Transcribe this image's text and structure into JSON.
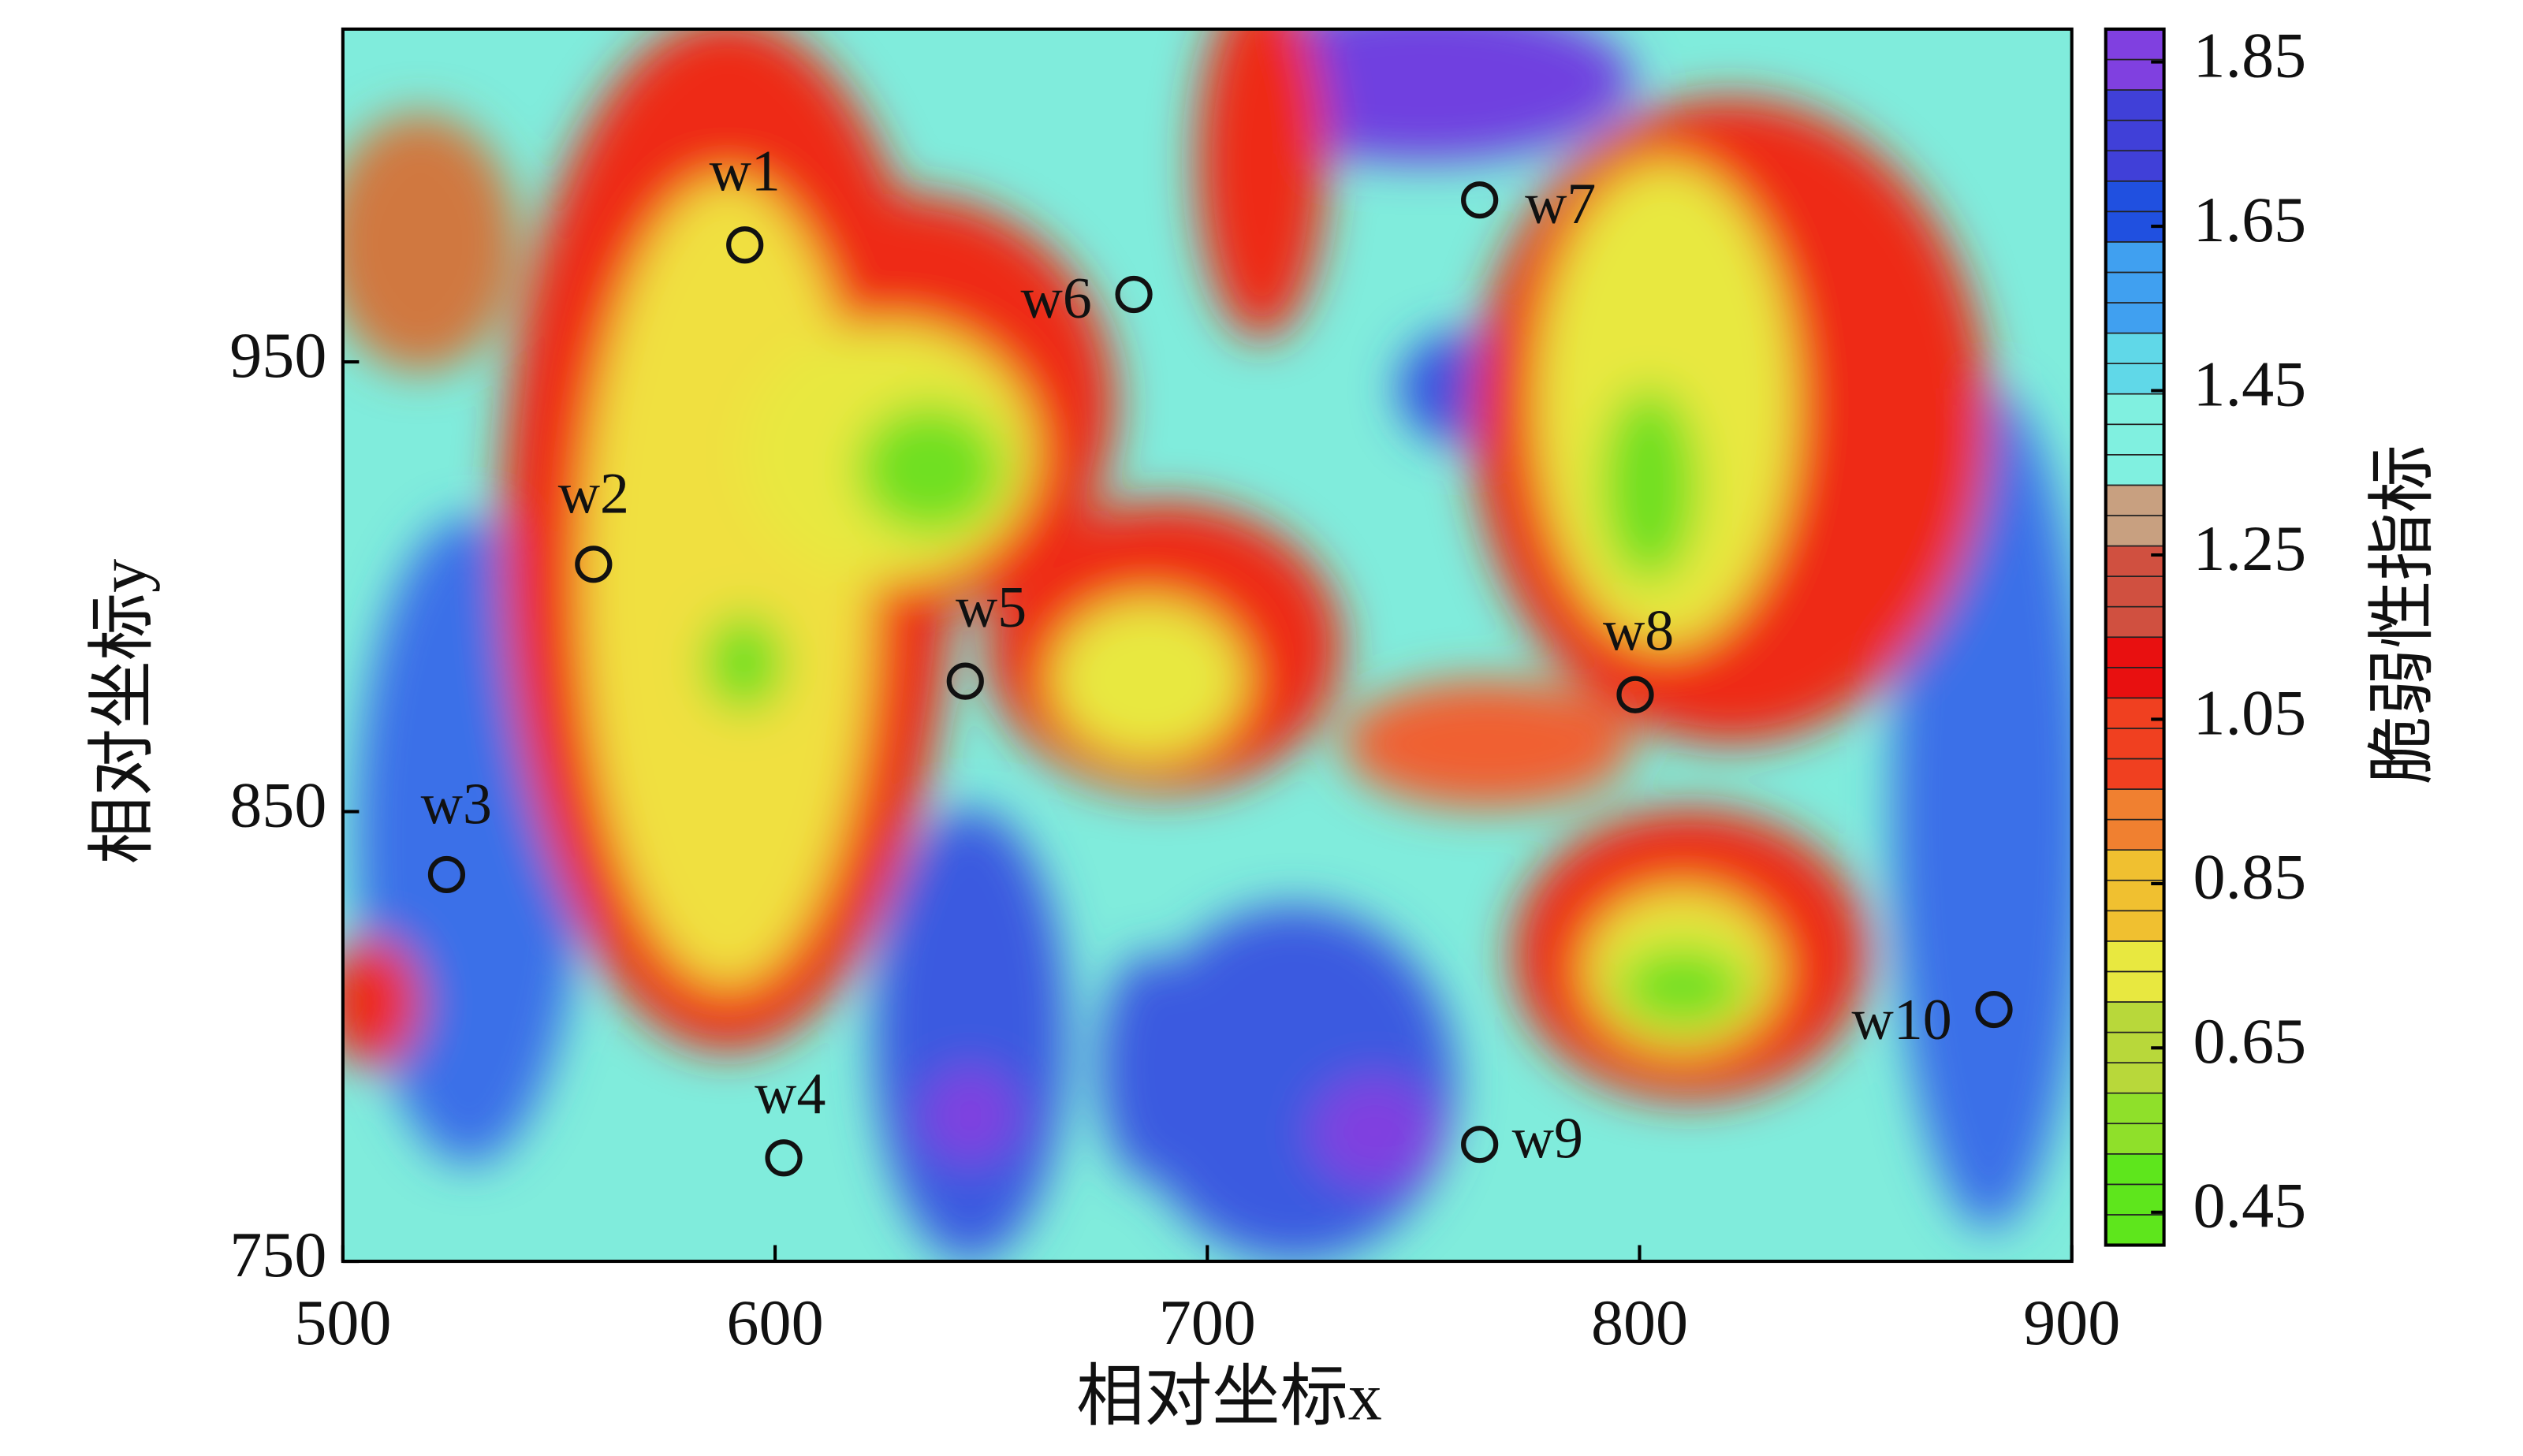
{
  "chart_data": {
    "type": "scatter",
    "xlabel": "相对坐标x",
    "ylabel": "相对坐标y",
    "xlim": [
      500,
      900
    ],
    "xticks": [
      500,
      600,
      700,
      800,
      900
    ],
    "ylim": [
      750,
      1024
    ],
    "yticks": [
      750,
      850,
      950
    ],
    "x": [
      593,
      558,
      524,
      602,
      644,
      683,
      763,
      799,
      763,
      882
    ],
    "y": [
      976,
      905,
      836,
      773,
      879,
      965,
      986,
      876,
      776,
      806
    ],
    "labels": [
      "w1",
      "w2",
      "w3",
      "w4",
      "w5",
      "w6",
      "w7",
      "w8",
      "w9",
      "w10"
    ],
    "marker_color": "#111111",
    "colorbar": {
      "label": "脆弱性指标",
      "lim": [
        0.41,
        1.89
      ],
      "ticks": [
        0.45,
        0.65,
        0.85,
        1.05,
        1.25,
        1.45,
        1.65,
        1.85
      ],
      "colors": [
        "#5ee61c",
        "#8fe02a",
        "#b8d83a",
        "#e8e840",
        "#f0c030",
        "#f08030",
        "#f04020",
        "#e81010",
        "#d05040",
        "#c8a080",
        "#80f0e0",
        "#60d8e8",
        "#40a0f0",
        "#2050e0",
        "#4040d8",
        "#8040e0"
      ]
    }
  }
}
